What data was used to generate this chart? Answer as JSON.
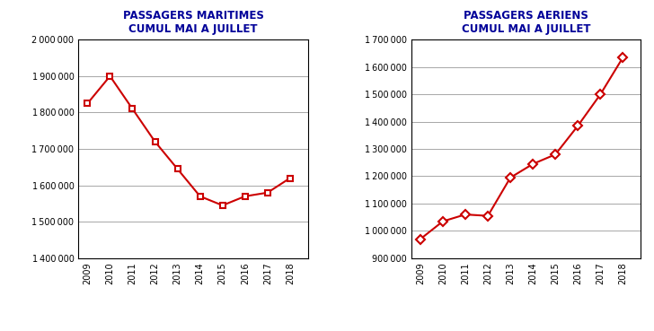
{
  "maritime": {
    "title": "PASSAGERS MARITIMES\nCUMUL MAI A JUILLET",
    "years": [
      2009,
      2010,
      2011,
      2012,
      2013,
      2014,
      2015,
      2016,
      2017,
      2018
    ],
    "values": [
      1825000,
      1900000,
      1810000,
      1720000,
      1645000,
      1570000,
      1545000,
      1570000,
      1580000,
      1620000
    ],
    "ylim": [
      1400000,
      2000000
    ],
    "yticks": [
      1400000,
      1500000,
      1600000,
      1700000,
      1800000,
      1900000,
      2000000
    ]
  },
  "aerien": {
    "title": "PASSAGERS AERIENS\nCUMUL MAI A JUILLET",
    "years": [
      2009,
      2010,
      2011,
      2012,
      2013,
      2014,
      2015,
      2016,
      2017,
      2018
    ],
    "values": [
      970000,
      1035000,
      1060000,
      1055000,
      1195000,
      1245000,
      1280000,
      1385000,
      1500000,
      1635000
    ],
    "ylim": [
      900000,
      1700000
    ],
    "yticks": [
      900000,
      1000000,
      1100000,
      1200000,
      1300000,
      1400000,
      1500000,
      1600000,
      1700000
    ]
  },
  "line_color": "#cc0000",
  "marker_maritime": "s",
  "marker_aerien": "D",
  "title_color": "#000099",
  "title_fontsize": 8.5,
  "tick_fontsize": 7,
  "bg_color": "#ffffff",
  "grid_color": "#999999"
}
